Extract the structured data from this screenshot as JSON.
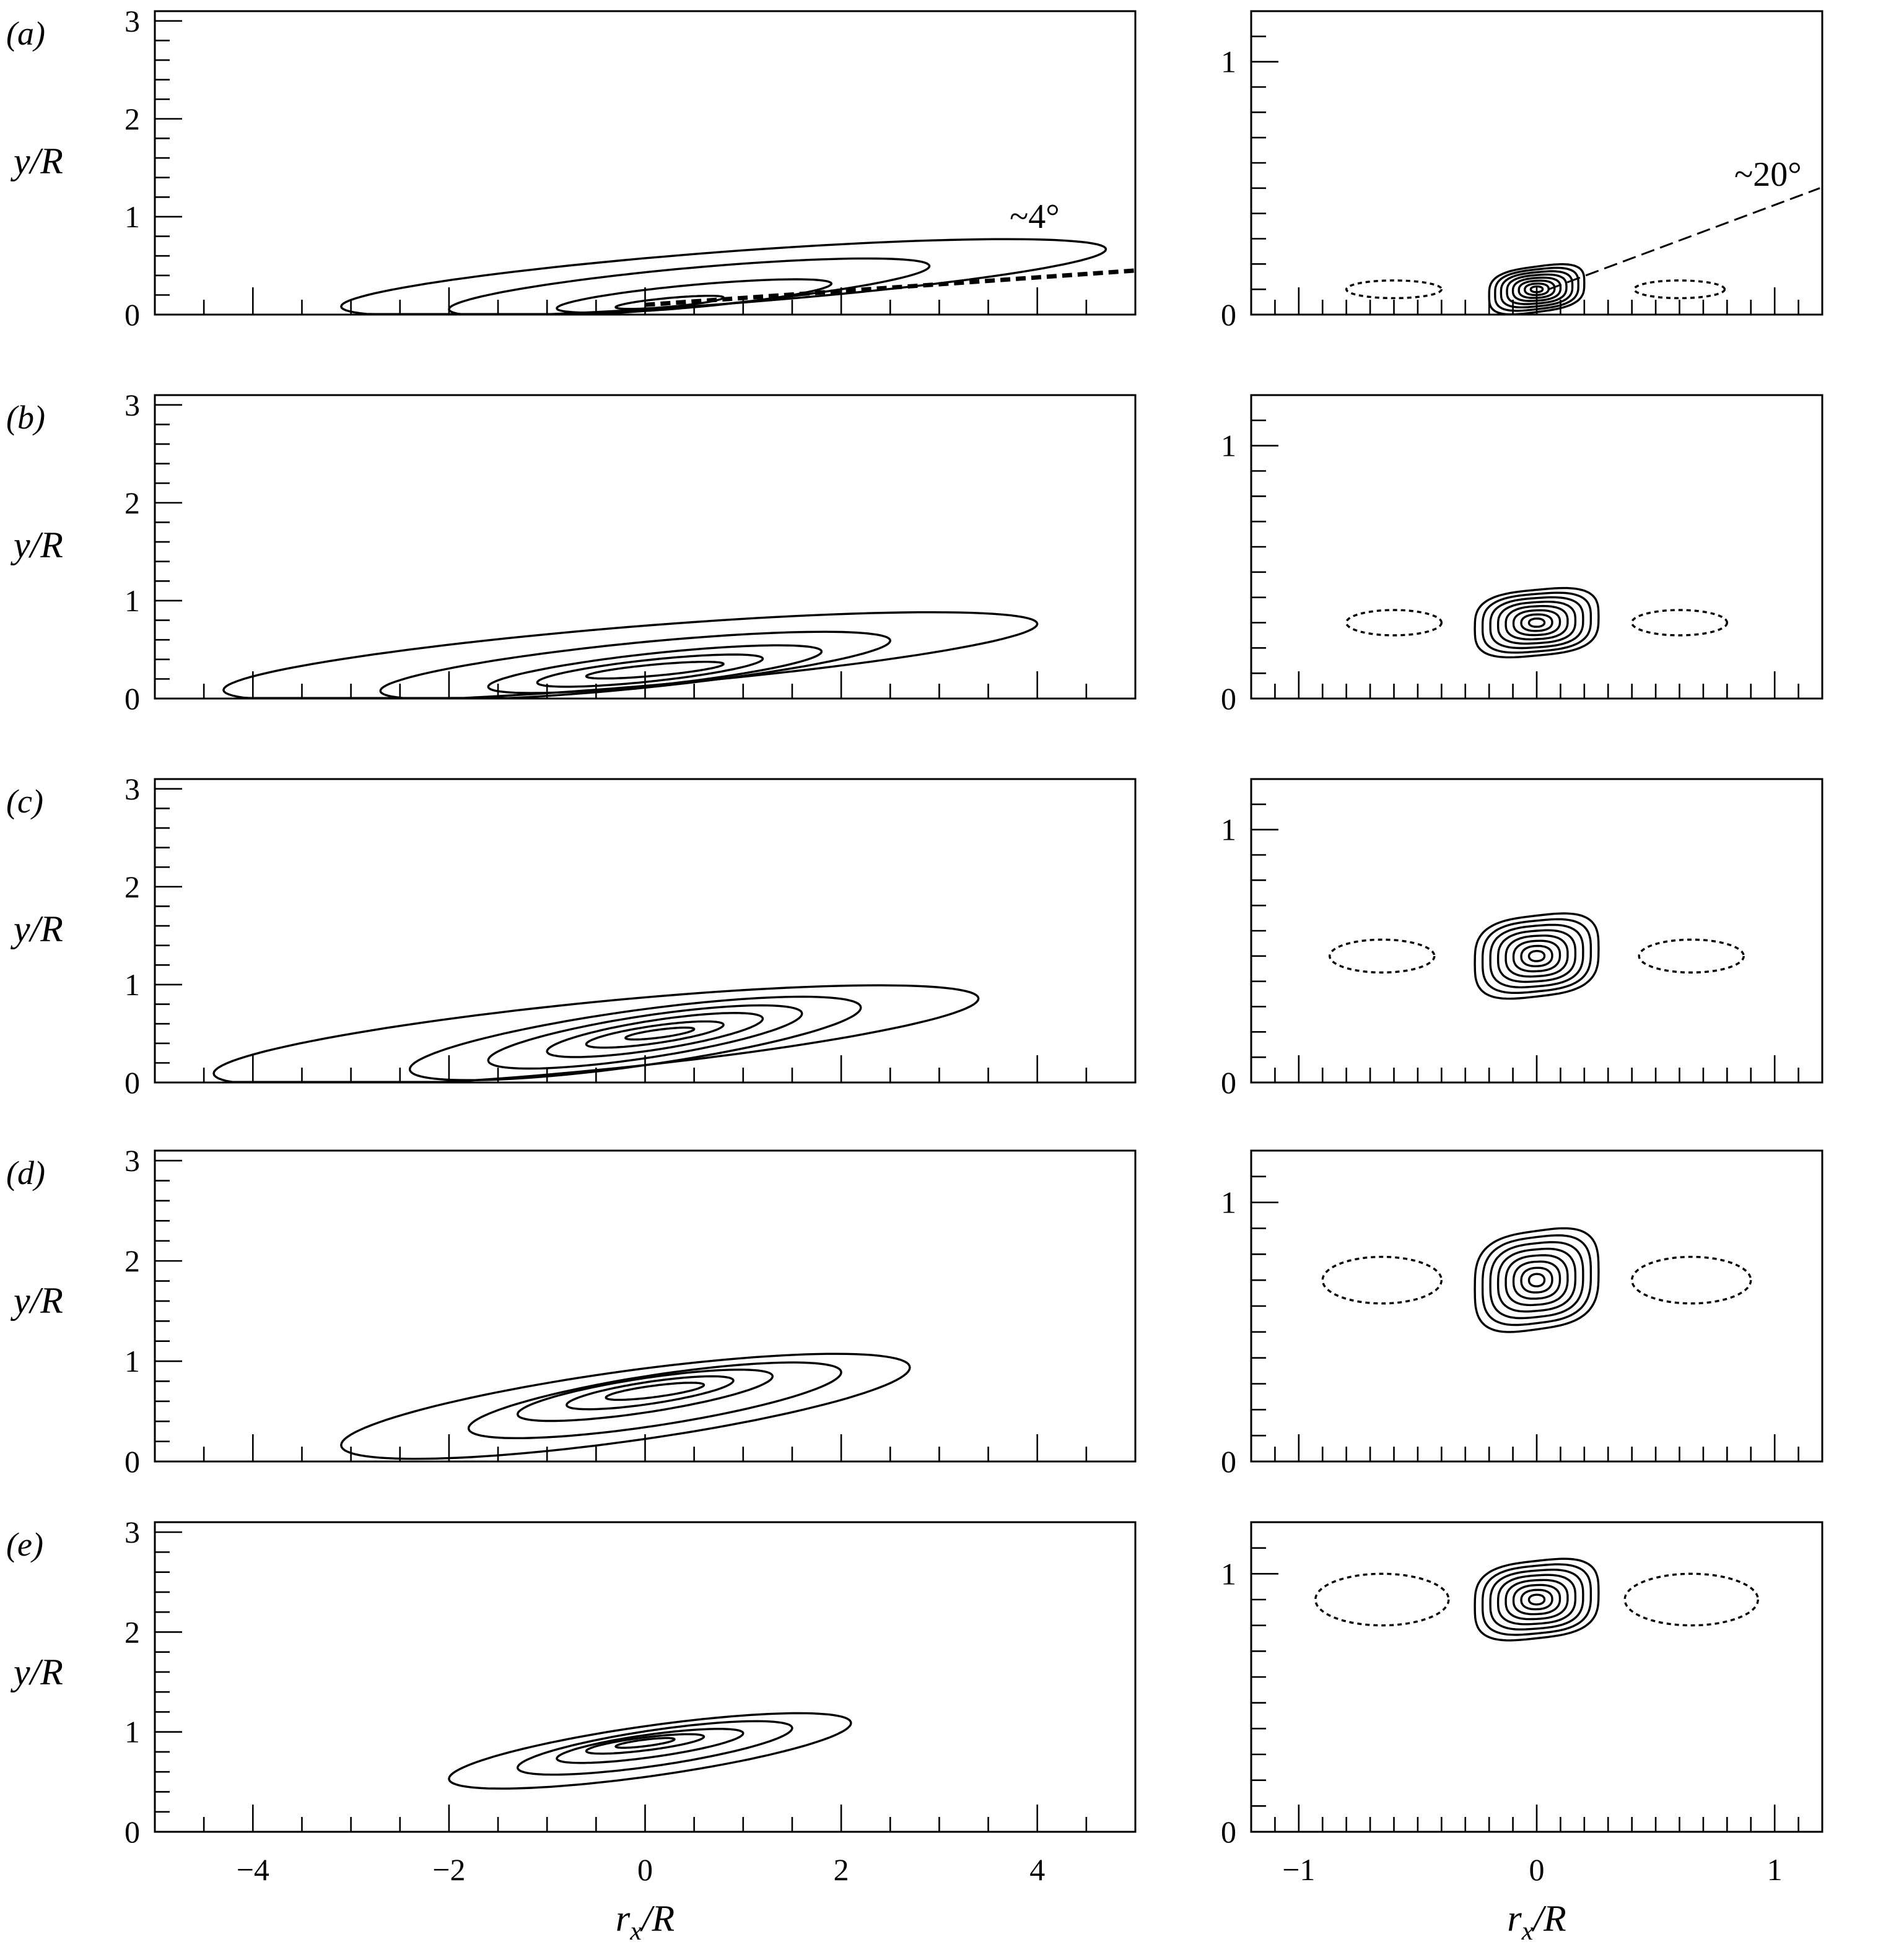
{
  "figure": {
    "ylabel": "y/R",
    "xlabel": "r_x/R",
    "annotations": {
      "angle_left": "~4°",
      "angle_right": "~20°"
    }
  },
  "chart_data": [
    {
      "type": "contour",
      "panel": "(a)",
      "side": "left",
      "xlim": [
        -5,
        5
      ],
      "ylim": [
        0,
        3.1
      ],
      "x_ticks": [
        -4,
        -2,
        0,
        2,
        4
      ],
      "y_ticks": [
        0,
        1,
        2,
        3
      ],
      "peak": {
        "x": 0,
        "y": 0.1
      },
      "guide_line": {
        "label": "~4°",
        "angle_deg": 4
      },
      "positive_contours": [
        {
          "x_range": [
            -3.1,
            4.7
          ],
          "y_range": [
            0.05,
            0.7
          ]
        },
        {
          "x_range": [
            -2.0,
            2.9
          ],
          "y_range": [
            0.03,
            0.52
          ]
        },
        {
          "x_range": [
            -0.9,
            1.9
          ],
          "y_range": [
            0.05,
            0.33
          ]
        },
        {
          "x_range": [
            -0.3,
            0.8
          ],
          "y_range": [
            0.07,
            0.18
          ]
        }
      ]
    },
    {
      "type": "contour",
      "panel": "(a)",
      "side": "right",
      "xlim": [
        -1.2,
        1.2
      ],
      "ylim": [
        0,
        1.2
      ],
      "x_ticks": [
        -1,
        0,
        1
      ],
      "y_ticks": [
        0,
        1
      ],
      "peak": {
        "x": 0,
        "y": 0.1
      },
      "guide_line": {
        "label": "~20°",
        "angle_deg": 20
      },
      "negative_contours": [
        {
          "center": [
            -0.6,
            0.1
          ],
          "half_width": 0.2,
          "half_height": 0.035
        },
        {
          "center": [
            0.6,
            0.1
          ],
          "half_width": 0.19,
          "half_height": 0.035
        }
      ]
    },
    {
      "type": "contour",
      "panel": "(b)",
      "side": "left",
      "xlim": [
        -5,
        5
      ],
      "ylim": [
        0,
        3.1
      ],
      "x_ticks": [
        -4,
        -2,
        0,
        2,
        4
      ],
      "y_ticks": [
        0,
        1,
        2,
        3
      ],
      "peak": {
        "x": 0.2,
        "y": 0.3
      },
      "positive_contours": [
        {
          "x_range": [
            -4.3,
            4.0
          ],
          "y_range": [
            0.05,
            0.8
          ]
        },
        {
          "x_range": [
            -2.7,
            2.5
          ],
          "y_range": [
            0.05,
            0.62
          ]
        },
        {
          "x_range": [
            -1.6,
            1.8
          ],
          "y_range": [
            0.1,
            0.5
          ]
        },
        {
          "x_range": [
            -1.1,
            1.2
          ],
          "y_range": [
            0.15,
            0.42
          ]
        },
        {
          "x_range": [
            -0.6,
            0.8
          ],
          "y_range": [
            0.22,
            0.36
          ]
        }
      ]
    },
    {
      "type": "contour",
      "panel": "(b)",
      "side": "right",
      "xlim": [
        -1.2,
        1.2
      ],
      "ylim": [
        0,
        1.2
      ],
      "x_ticks": [
        -1,
        0,
        1
      ],
      "y_ticks": [
        0,
        1
      ],
      "peak": {
        "x": 0,
        "y": 0.3
      },
      "negative_contours": [
        {
          "center": [
            -0.6,
            0.3
          ],
          "half_width": 0.2,
          "half_height": 0.05
        },
        {
          "center": [
            0.6,
            0.3
          ],
          "half_width": 0.2,
          "half_height": 0.05
        }
      ]
    },
    {
      "type": "contour",
      "panel": "(c)",
      "side": "left",
      "xlim": [
        -5,
        5
      ],
      "ylim": [
        0,
        3.1
      ],
      "x_ticks": [
        -4,
        -2,
        0,
        2,
        4
      ],
      "y_ticks": [
        0,
        1,
        2,
        3
      ],
      "peak": {
        "x": 0.1,
        "y": 0.5
      },
      "positive_contours": [
        {
          "x_range": [
            -4.4,
            3.4
          ],
          "y_range": [
            0.05,
            0.9
          ]
        },
        {
          "x_range": [
            -2.4,
            2.2
          ],
          "y_range": [
            0.1,
            0.8
          ]
        },
        {
          "x_range": [
            -1.6,
            1.6
          ],
          "y_range": [
            0.2,
            0.73
          ]
        },
        {
          "x_range": [
            -1.0,
            1.2
          ],
          "y_range": [
            0.3,
            0.67
          ]
        },
        {
          "x_range": [
            -0.6,
            0.8
          ],
          "y_range": [
            0.38,
            0.6
          ]
        },
        {
          "x_range": [
            -0.2,
            0.5
          ],
          "y_range": [
            0.45,
            0.55
          ]
        }
      ]
    },
    {
      "type": "contour",
      "panel": "(c)",
      "side": "right",
      "xlim": [
        -1.2,
        1.2
      ],
      "ylim": [
        0,
        1.2
      ],
      "x_ticks": [
        -1,
        0,
        1
      ],
      "y_ticks": [
        0,
        1
      ],
      "peak": {
        "x": 0,
        "y": 0.5
      },
      "negative_contours": [
        {
          "center": [
            -0.65,
            0.5
          ],
          "half_width": 0.22,
          "half_height": 0.065
        },
        {
          "center": [
            0.65,
            0.5
          ],
          "half_width": 0.22,
          "half_height": 0.065
        }
      ]
    },
    {
      "type": "contour",
      "panel": "(d)",
      "side": "left",
      "xlim": [
        -5,
        5
      ],
      "ylim": [
        0,
        3.1
      ],
      "x_ticks": [
        -4,
        -2,
        0,
        2,
        4
      ],
      "y_ticks": [
        0,
        1,
        2,
        3
      ],
      "peak": {
        "x": 0.1,
        "y": 0.7
      },
      "positive_contours": [
        {
          "x_range": [
            -3.1,
            2.7
          ],
          "y_range": [
            0.12,
            0.98
          ]
        },
        {
          "x_range": [
            -1.8,
            2.0
          ],
          "y_range": [
            0.3,
            0.92
          ]
        },
        {
          "x_range": [
            -1.3,
            1.3
          ],
          "y_range": [
            0.45,
            0.87
          ]
        },
        {
          "x_range": [
            -0.8,
            0.9
          ],
          "y_range": [
            0.55,
            0.82
          ]
        },
        {
          "x_range": [
            -0.4,
            0.6
          ],
          "y_range": [
            0.63,
            0.77
          ]
        }
      ]
    },
    {
      "type": "contour",
      "panel": "(d)",
      "side": "right",
      "xlim": [
        -1.2,
        1.2
      ],
      "ylim": [
        0,
        1.2
      ],
      "x_ticks": [
        -1,
        0,
        1
      ],
      "y_ticks": [
        0,
        1
      ],
      "peak": {
        "x": 0,
        "y": 0.7
      },
      "negative_contours": [
        {
          "center": [
            -0.65,
            0.7
          ],
          "half_width": 0.25,
          "half_height": 0.09
        },
        {
          "center": [
            0.65,
            0.7
          ],
          "half_width": 0.25,
          "half_height": 0.09
        }
      ]
    },
    {
      "type": "contour",
      "panel": "(e)",
      "side": "left",
      "xlim": [
        -5,
        5
      ],
      "ylim": [
        0,
        3.1
      ],
      "x_ticks": [
        -4,
        -2,
        0,
        2,
        4
      ],
      "y_ticks": [
        0,
        1,
        2,
        3
      ],
      "peak": {
        "x": 0,
        "y": 0.9
      },
      "positive_contours": [
        {
          "x_range": [
            -2.0,
            2.1
          ],
          "y_range": [
            0.5,
            1.12
          ]
        },
        {
          "x_range": [
            -1.3,
            1.5
          ],
          "y_range": [
            0.62,
            1.06
          ]
        },
        {
          "x_range": [
            -0.9,
            1.0
          ],
          "y_range": [
            0.72,
            1.0
          ]
        },
        {
          "x_range": [
            -0.6,
            0.6
          ],
          "y_range": [
            0.8,
            0.96
          ]
        },
        {
          "x_range": [
            -0.3,
            0.3
          ],
          "y_range": [
            0.85,
            0.93
          ]
        }
      ]
    },
    {
      "type": "contour",
      "panel": "(e)",
      "side": "right",
      "xlim": [
        -1.2,
        1.2
      ],
      "ylim": [
        0,
        1.2
      ],
      "x_ticks": [
        -1,
        0,
        1
      ],
      "y_ticks": [
        0,
        1
      ],
      "peak": {
        "x": 0,
        "y": 0.9
      },
      "negative_contours": [
        {
          "center": [
            -0.65,
            0.9
          ],
          "half_width": 0.28,
          "half_height": 0.1
        },
        {
          "center": [
            0.65,
            0.9
          ],
          "half_width": 0.28,
          "half_height": 0.1
        }
      ]
    }
  ]
}
